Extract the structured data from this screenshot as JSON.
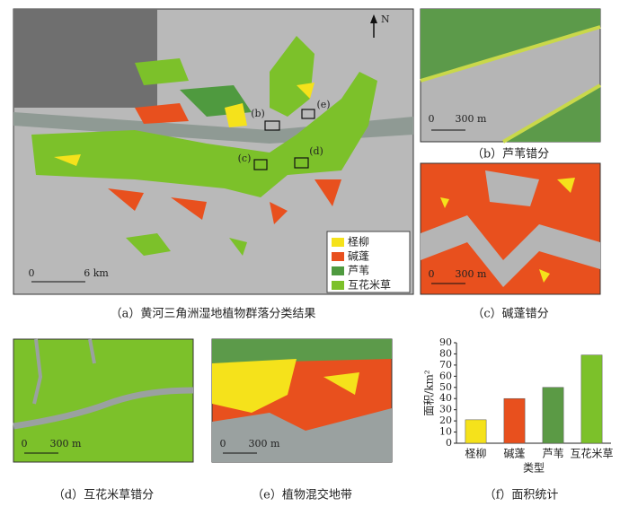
{
  "panels": {
    "a": {
      "caption": "（a）黄河三角洲湿地植物群落分类结果",
      "north": "N",
      "scale": [
        "0",
        "6 km"
      ],
      "markers": [
        "(b)",
        "(c)",
        "(d)",
        "(e)"
      ],
      "legend": [
        {
          "name": "柽柳",
          "color": "#f5e21b"
        },
        {
          "name": "碱蓬",
          "color": "#e8501e"
        },
        {
          "name": "芦苇",
          "color": "#4f9a3f"
        },
        {
          "name": "互花米草",
          "color": "#7cc12a"
        }
      ]
    },
    "b": {
      "caption": "（b）芦苇错分",
      "scale": [
        "0",
        "300 m"
      ]
    },
    "c": {
      "caption": "（c）碱蓬错分",
      "scale": [
        "0",
        "300 m"
      ]
    },
    "d": {
      "caption": "（d）互花米草错分",
      "scale": [
        "0",
        "300 m"
      ]
    },
    "e": {
      "caption": "（e）植物混交地带",
      "scale": [
        "0",
        "300 m"
      ]
    },
    "f": {
      "caption": "（f）面积统计"
    }
  },
  "chart_data": {
    "type": "bar",
    "categories": [
      "柽柳",
      "碱蓬",
      "芦苇",
      "互花米草"
    ],
    "values": [
      21,
      40,
      50,
      79
    ],
    "colors": [
      "#f5e21b",
      "#e8501e",
      "#5b9a45",
      "#7cc12a"
    ],
    "y_label": "面积/km²",
    "x_label": "类型",
    "ylim": [
      0,
      90
    ],
    "yticks": [
      0,
      10,
      20,
      30,
      40,
      50,
      60,
      70,
      80,
      90
    ]
  }
}
